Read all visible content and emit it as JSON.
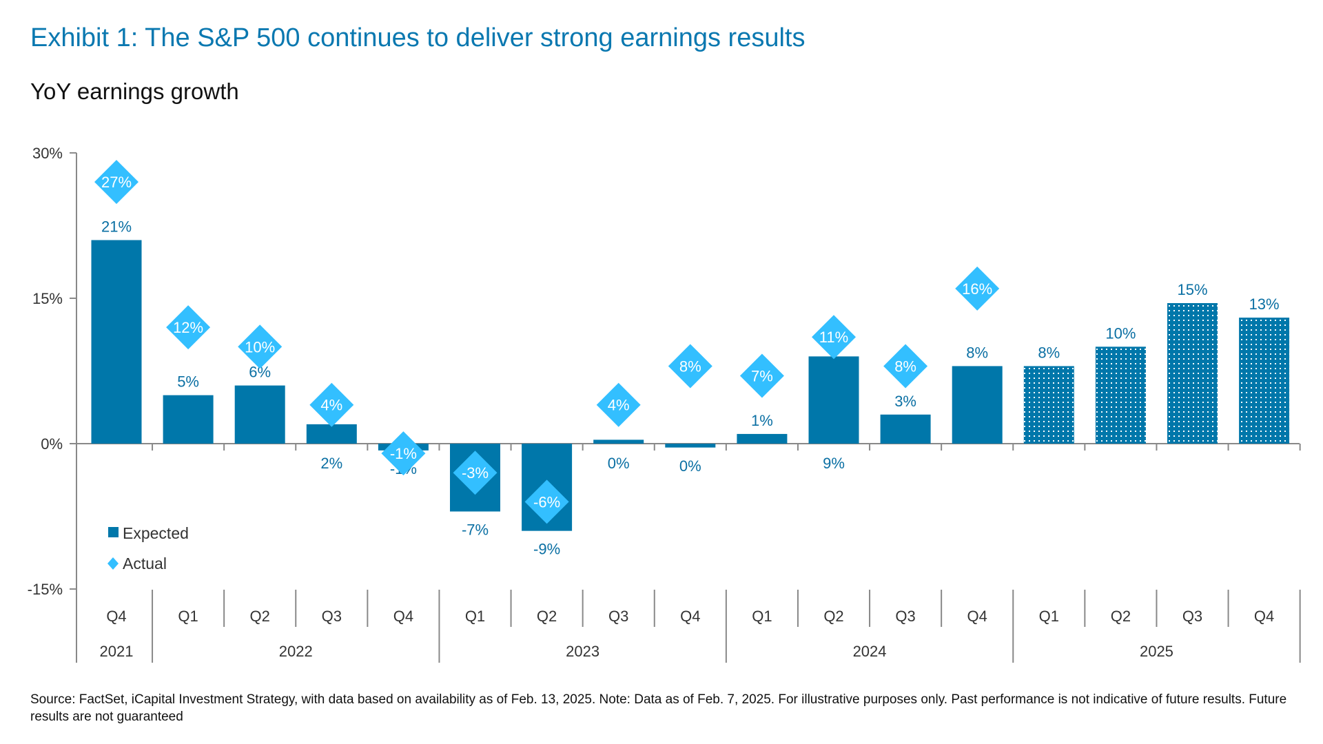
{
  "title": "Exhibit 1: The S&P 500 continues to deliver strong earnings results",
  "subtitle": "YoY earnings growth",
  "source": "Source: FactSet, iCapital Investment Strategy, with data based on availability as of Feb. 13, 2025. Note: Data as of Feb. 7, 2025.  For illustrative purposes only. Past performance is not indicative of future results. Future results are not guaranteed",
  "colors": {
    "expected": "#0077aa",
    "actual": "#33bfff",
    "title": "#0a78b0",
    "label": "#0a6fa3",
    "axis": "#888888"
  },
  "chart_data": {
    "type": "bar",
    "title": "YoY earnings growth",
    "ylim": [
      -15,
      30
    ],
    "yticks": [
      30,
      15,
      0,
      -15
    ],
    "ytick_labels": [
      "30%",
      "15%",
      "0%",
      "-15%"
    ],
    "grid": false,
    "legend_placement": "bottom-left",
    "categories": [
      "Q4",
      "Q1",
      "Q2",
      "Q3",
      "Q4",
      "Q1",
      "Q2",
      "Q3",
      "Q4",
      "Q1",
      "Q2",
      "Q3",
      "Q4",
      "Q1",
      "Q2",
      "Q3",
      "Q4"
    ],
    "years": [
      {
        "label": "2021",
        "span": 1
      },
      {
        "label": "2022",
        "span": 4
      },
      {
        "label": "2023",
        "span": 4
      },
      {
        "label": "2024",
        "span": 4
      },
      {
        "label": "2025",
        "span": 4
      }
    ],
    "series": [
      {
        "name": "Expected",
        "mark": "bar",
        "values": [
          21,
          5,
          6,
          2,
          -0.7,
          -7,
          -9,
          0.4,
          -0.4,
          1,
          9,
          3,
          8,
          8,
          10,
          14.5,
          13
        ],
        "labels": [
          "21%",
          "5%",
          "6%",
          "2%",
          "-1%",
          "-7%",
          "-9%",
          "0%",
          "0%",
          "1%",
          "9%",
          "3%",
          "8%",
          "8%",
          "10%",
          "15%",
          "13%"
        ],
        "patterned": [
          false,
          false,
          false,
          false,
          false,
          false,
          false,
          false,
          false,
          false,
          false,
          false,
          false,
          true,
          true,
          true,
          true
        ]
      },
      {
        "name": "Actual",
        "mark": "diamond",
        "values": [
          27,
          12,
          10,
          4,
          -1,
          -3,
          -6,
          4,
          8,
          7,
          11,
          8,
          16,
          null,
          null,
          null,
          null
        ],
        "labels": [
          "27%",
          "12%",
          "10%",
          "4%",
          "-1%",
          "-3%",
          "-6%",
          "4%",
          "8%",
          "7%",
          "11%",
          "8%",
          "16%",
          null,
          null,
          null,
          null
        ]
      }
    ]
  }
}
